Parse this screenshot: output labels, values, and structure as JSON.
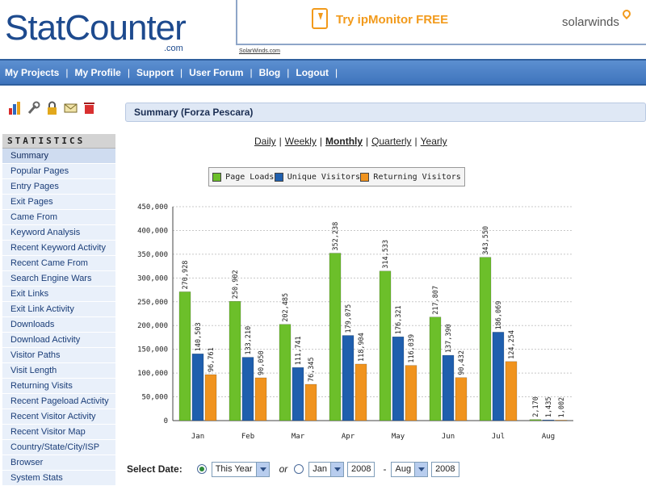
{
  "header": {
    "logo": "StatCounter",
    "logo_suffix": ".com",
    "ad": {
      "text": "Try ipMonitor FREE",
      "brand": "solarwinds",
      "sub": "SolarWinds.com"
    }
  },
  "nav": [
    "My Projects",
    "My Profile",
    "Support",
    "User Forum",
    "Blog",
    "Logout"
  ],
  "tools": [
    "bar-chart-icon",
    "wrench-icon",
    "lock-icon",
    "mail-icon",
    "trash-icon"
  ],
  "sidebar": {
    "heading": "STATISTICS",
    "items": [
      "Summary",
      "Popular Pages",
      "Entry Pages",
      "Exit Pages",
      "Came From",
      "Keyword Analysis",
      "Recent Keyword Activity",
      "Recent Came From",
      "Search Engine Wars",
      "Exit Links",
      "Exit Link Activity",
      "Downloads",
      "Download Activity",
      "Visitor Paths",
      "Visit Length",
      "Returning Visits",
      "Recent Pageload Activity",
      "Recent Visitor Activity",
      "Recent Visitor Map",
      "Country/State/City/ISP",
      "Browser",
      "System Stats"
    ]
  },
  "summary_title": "Summary (Forza Pescara)",
  "periods": [
    "Daily",
    "Weekly",
    "Monthly",
    "Quarterly",
    "Yearly"
  ],
  "select_date": {
    "label": "Select Date:",
    "range_option": "This Year",
    "or": "or",
    "from_month": "Jan",
    "from_year": "2008",
    "dash": "-",
    "to_month": "Aug",
    "to_year": "2008"
  },
  "colors": {
    "page_loads": "#6cbf2a",
    "unique_visitors": "#1f5fae",
    "returning_visitors": "#f0931e"
  },
  "chart_data": {
    "type": "bar",
    "categories": [
      "Jan",
      "Feb",
      "Mar",
      "Apr",
      "May",
      "Jun",
      "Jul",
      "Aug"
    ],
    "series": [
      {
        "name": "Page Loads",
        "values": [
          270928,
          250902,
          202485,
          352238,
          314533,
          217807,
          343550,
          2170
        ]
      },
      {
        "name": "Unique Visitors",
        "values": [
          140503,
          133210,
          111741,
          179075,
          176321,
          137390,
          186069,
          1435
        ]
      },
      {
        "name": "Returning Visitors",
        "values": [
          96761,
          90050,
          76345,
          118904,
          116039,
          90432,
          124254,
          1002
        ]
      }
    ],
    "value_labels": [
      [
        "270,928",
        "250,902",
        "202,485",
        "352,238",
        "314,533",
        "217,807",
        "343,550",
        "2,170"
      ],
      [
        "140,503",
        "133,210",
        "111,741",
        "179,075",
        "176,321",
        "137,390",
        "186,069",
        "1,435"
      ],
      [
        "96,761",
        "90,050",
        "76,345",
        "118,904",
        "116,039",
        "90,432",
        "124,254",
        "1,002"
      ]
    ],
    "y_ticks": [
      "0",
      "50,000",
      "100,000",
      "150,000",
      "200,000",
      "250,000",
      "300,000",
      "350,000",
      "400,000",
      "450,000"
    ],
    "ylim": [
      0,
      450000
    ],
    "grid": true,
    "legend": "top"
  }
}
